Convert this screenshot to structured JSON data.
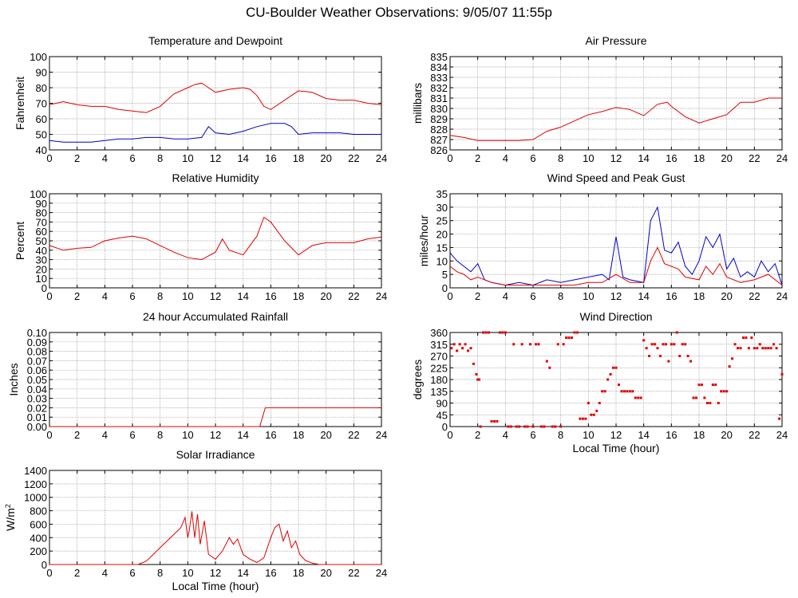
{
  "page": {
    "title": "CU-Boulder Weather Observations: 9/05/07 11:55p"
  },
  "chart_data": [
    {
      "id": "temp",
      "type": "line",
      "title": "Temperature and Dewpoint",
      "xlabel": "",
      "ylabel": "Fahrenheit",
      "xlim": [
        0,
        24
      ],
      "ylim": [
        40,
        100
      ],
      "yticks": [
        40,
        50,
        60,
        70,
        80,
        90,
        100
      ],
      "ytick_labels": [
        "40",
        "50",
        "60",
        "70",
        "80",
        "90",
        "100"
      ],
      "grid": true,
      "series": [
        {
          "color": "#e00000",
          "x": [
            0,
            1,
            2,
            3,
            4,
            5,
            6,
            7,
            8,
            9,
            10,
            10.5,
            11,
            11.5,
            12,
            13,
            14,
            14.5,
            15,
            15.5,
            16,
            17,
            18,
            19,
            20,
            21,
            22,
            23,
            24
          ],
          "y": [
            69,
            71,
            69,
            68,
            68,
            66,
            65,
            64,
            68,
            76,
            80,
            82,
            83,
            80,
            77,
            79,
            80,
            79,
            75,
            68,
            66,
            72,
            78,
            77,
            73,
            72,
            72,
            70,
            69
          ]
        },
        {
          "color": "#0000cc",
          "x": [
            0,
            1,
            2,
            3,
            4,
            5,
            6,
            7,
            8,
            9,
            10,
            11,
            11.5,
            12,
            13,
            14,
            15,
            16,
            17,
            17.5,
            18,
            19,
            20,
            21,
            22,
            23,
            24
          ],
          "y": [
            46,
            45,
            45,
            45,
            46,
            47,
            47,
            48,
            48,
            47,
            47,
            48,
            55,
            51,
            50,
            52,
            55,
            57,
            57,
            55,
            50,
            51,
            51,
            51,
            50,
            50,
            50
          ]
        }
      ]
    },
    {
      "id": "pressure",
      "type": "line",
      "title": "Air Pressure",
      "xlabel": "",
      "ylabel": "millibars",
      "xlim": [
        0,
        24
      ],
      "ylim": [
        826,
        835
      ],
      "yticks": [
        826,
        827,
        828,
        829,
        830,
        831,
        832,
        833,
        834,
        835
      ],
      "ytick_labels": [
        "826",
        "827",
        "828",
        "829",
        "830",
        "831",
        "832",
        "833",
        "834",
        "835"
      ],
      "grid": true,
      "series": [
        {
          "color": "#e00000",
          "x": [
            0,
            1,
            2,
            3,
            4,
            5,
            6,
            7,
            8,
            9,
            10,
            11,
            12,
            13,
            14,
            15,
            15.7,
            16,
            17,
            18,
            19,
            20,
            21,
            22,
            23,
            24
          ],
          "y": [
            827.4,
            827.2,
            826.9,
            826.9,
            826.9,
            826.9,
            827.0,
            827.8,
            828.2,
            828.8,
            829.4,
            829.7,
            830.1,
            829.9,
            829.3,
            830.4,
            830.6,
            830.2,
            829.2,
            828.6,
            829.0,
            829.4,
            830.6,
            830.6,
            831.0,
            831.0
          ]
        }
      ]
    },
    {
      "id": "humidity",
      "type": "line",
      "title": "Relative Humidity",
      "xlabel": "",
      "ylabel": "Percent",
      "xlim": [
        0,
        24
      ],
      "ylim": [
        0,
        100
      ],
      "yticks": [
        0,
        10,
        20,
        30,
        40,
        50,
        60,
        70,
        80,
        90,
        100
      ],
      "ytick_labels": [
        "0",
        "10",
        "20",
        "30",
        "40",
        "50",
        "60",
        "70",
        "80",
        "90",
        "100"
      ],
      "grid": true,
      "series": [
        {
          "color": "#e00000",
          "x": [
            0,
            1,
            2,
            3,
            4,
            5,
            6,
            7,
            8,
            9,
            10,
            11,
            12,
            12.5,
            13,
            14,
            15,
            15.5,
            16,
            17,
            18,
            19,
            20,
            21,
            22,
            23,
            24
          ],
          "y": [
            45,
            40,
            42,
            43,
            50,
            53,
            55,
            52,
            45,
            38,
            32,
            30,
            38,
            52,
            40,
            35,
            55,
            75,
            70,
            50,
            35,
            45,
            48,
            48,
            48,
            52,
            54
          ]
        }
      ]
    },
    {
      "id": "wind",
      "type": "line",
      "title": "Wind Speed and Peak Gust",
      "xlabel": "",
      "ylabel": "miles/hour",
      "xlim": [
        0,
        24
      ],
      "ylim": [
        0,
        35
      ],
      "yticks": [
        0,
        5,
        10,
        15,
        20,
        25,
        30,
        35
      ],
      "ytick_labels": [
        "0",
        "5",
        "10",
        "15",
        "20",
        "25",
        "30",
        "35"
      ],
      "grid": true,
      "series": [
        {
          "color": "#0000cc",
          "x": [
            0,
            0.5,
            1,
            1.5,
            2,
            2.5,
            3,
            4,
            5,
            6,
            7,
            8,
            9,
            10,
            11,
            11.5,
            12,
            12.5,
            13,
            14,
            14.5,
            15,
            15.5,
            16,
            16.5,
            17,
            17.5,
            18,
            18.5,
            19,
            19.5,
            20,
            20.5,
            21,
            21.5,
            22,
            22.5,
            23,
            23.5,
            24
          ],
          "y": [
            13,
            10,
            8,
            6,
            9,
            3,
            2,
            1,
            2,
            1,
            3,
            2,
            3,
            4,
            5,
            3,
            19,
            4,
            3,
            2,
            25,
            30,
            14,
            13,
            17,
            8,
            5,
            10,
            19,
            15,
            20,
            7,
            11,
            4,
            6,
            4,
            10,
            6,
            9,
            1
          ]
        },
        {
          "color": "#e00000",
          "x": [
            0,
            0.5,
            1,
            1.5,
            2,
            3,
            4,
            5,
            6,
            7,
            8,
            9,
            10,
            11,
            12,
            13,
            14,
            14.5,
            15,
            15.5,
            16,
            16.5,
            17,
            18,
            18.5,
            19,
            19.5,
            20,
            21,
            22,
            23,
            24
          ],
          "y": [
            8,
            6,
            5,
            3,
            4,
            2,
            1,
            1,
            1,
            1,
            1,
            1,
            2,
            2,
            5,
            2,
            2,
            10,
            15,
            9,
            8,
            7,
            4,
            3,
            8,
            5,
            9,
            4,
            2,
            3,
            5,
            1
          ]
        }
      ]
    },
    {
      "id": "rain",
      "type": "line",
      "title": "24 hour Accumulated Rainfall",
      "xlabel": "",
      "ylabel": "Inches",
      "xlim": [
        0,
        24
      ],
      "ylim": [
        0,
        0.1
      ],
      "yticks": [
        0,
        0.01,
        0.02,
        0.03,
        0.04,
        0.05,
        0.06,
        0.07,
        0.08,
        0.09,
        0.1
      ],
      "ytick_labels": [
        "0.00",
        "0.01",
        "0.02",
        "0.03",
        "0.04",
        "0.05",
        "0.06",
        "0.07",
        "0.08",
        "0.09",
        "0.10"
      ],
      "grid": true,
      "series": [
        {
          "color": "#e00000",
          "x": [
            0,
            15.2,
            15.3,
            15.5,
            15.6,
            24
          ],
          "y": [
            0,
            0,
            0.005,
            0.015,
            0.02,
            0.02
          ]
        }
      ]
    },
    {
      "id": "winddir",
      "type": "scatter",
      "title": "Wind Direction",
      "xlabel": "Local Time (hour)",
      "ylabel": "degrees",
      "xlim": [
        0,
        24
      ],
      "ylim": [
        0,
        360
      ],
      "yticks": [
        0,
        45,
        90,
        135,
        180,
        225,
        270,
        315,
        360
      ],
      "ytick_labels": [
        "0",
        "45",
        "90",
        "135",
        "180",
        "225",
        "270",
        "315",
        "360"
      ],
      "grid": true,
      "series": [
        {
          "color": "#e00000",
          "x": [
            0.1,
            0.3,
            0.5,
            0.7,
            0.9,
            1.1,
            1.3,
            1.5,
            1.7,
            1.9,
            2.0,
            2.1,
            2.2,
            2.4,
            2.6,
            2.8,
            3.0,
            3.2,
            3.4,
            3.6,
            3.8,
            4.0,
            4.2,
            4.4,
            4.6,
            4.8,
            5.0,
            5.2,
            5.4,
            5.6,
            5.8,
            6.0,
            6.2,
            6.4,
            6.6,
            6.8,
            7.0,
            7.2,
            7.4,
            7.6,
            7.8,
            8.0,
            8.2,
            8.4,
            8.6,
            8.8,
            9.0,
            9.2,
            9.4,
            9.6,
            9.8,
            10.0,
            10.2,
            10.4,
            10.6,
            10.8,
            11.0,
            11.2,
            11.4,
            11.6,
            11.8,
            12.0,
            12.2,
            12.4,
            12.6,
            12.8,
            13.0,
            13.2,
            13.4,
            13.6,
            13.8,
            14.0,
            14.2,
            14.4,
            14.6,
            14.8,
            15.0,
            15.2,
            15.4,
            15.6,
            15.8,
            16.0,
            16.2,
            16.4,
            16.6,
            16.8,
            17.0,
            17.2,
            17.4,
            17.6,
            17.8,
            18.0,
            18.2,
            18.4,
            18.6,
            18.8,
            19.0,
            19.2,
            19.4,
            19.6,
            19.8,
            20.0,
            20.2,
            20.4,
            20.6,
            20.8,
            21.0,
            21.2,
            21.4,
            21.6,
            21.8,
            22.0,
            22.2,
            22.4,
            22.6,
            22.8,
            23.0,
            23.2,
            23.4,
            23.6,
            23.8,
            24.0
          ],
          "y": [
            300,
            315,
            290,
            315,
            300,
            315,
            290,
            300,
            240,
            200,
            180,
            180,
            0,
            360,
            360,
            360,
            20,
            20,
            20,
            360,
            360,
            360,
            0,
            0,
            315,
            0,
            0,
            315,
            0,
            0,
            315,
            0,
            315,
            315,
            0,
            0,
            250,
            225,
            0,
            0,
            315,
            0,
            315,
            340,
            340,
            340,
            360,
            360,
            30,
            30,
            30,
            90,
            45,
            45,
            60,
            90,
            135,
            135,
            180,
            200,
            225,
            225,
            160,
            135,
            135,
            135,
            135,
            135,
            110,
            110,
            110,
            330,
            300,
            270,
            315,
            315,
            300,
            270,
            315,
            315,
            250,
            315,
            315,
            360,
            270,
            315,
            315,
            270,
            250,
            110,
            110,
            160,
            160,
            110,
            90,
            90,
            160,
            160,
            90,
            135,
            135,
            135,
            230,
            260,
            315,
            300,
            300,
            340,
            340,
            300,
            340,
            300,
            300,
            315,
            300,
            300,
            300,
            300,
            315,
            300,
            30,
            200
          ]
        }
      ]
    },
    {
      "id": "solar",
      "type": "line",
      "title": "Solar Irradiance",
      "xlabel": "Local Time (hour)",
      "ylabel": "W/m",
      "ylabel_sup": "2",
      "xlim": [
        0,
        24
      ],
      "ylim": [
        0,
        1400
      ],
      "yticks": [
        0,
        200,
        400,
        600,
        800,
        1000,
        1200,
        1400
      ],
      "ytick_labels": [
        "0",
        "200",
        "400",
        "600",
        "800",
        "1000",
        "1200",
        "1400"
      ],
      "grid": true,
      "series": [
        {
          "color": "#e00000",
          "x": [
            0,
            6.4,
            7,
            8,
            9,
            9.5,
            9.8,
            10,
            10.1,
            10.3,
            10.5,
            10.7,
            10.9,
            11.2,
            11.5,
            12,
            12.5,
            13,
            13.3,
            13.6,
            14,
            14.5,
            15,
            15.5,
            16,
            16.3,
            16.6,
            16.9,
            17.2,
            17.5,
            17.8,
            18.1,
            18.5,
            19,
            19.5,
            24
          ],
          "y": [
            0,
            0,
            50,
            250,
            450,
            550,
            700,
            400,
            500,
            790,
            400,
            750,
            300,
            650,
            150,
            80,
            200,
            400,
            300,
            380,
            150,
            80,
            30,
            100,
            400,
            550,
            600,
            350,
            500,
            250,
            350,
            150,
            60,
            20,
            0,
            0
          ]
        }
      ]
    }
  ]
}
